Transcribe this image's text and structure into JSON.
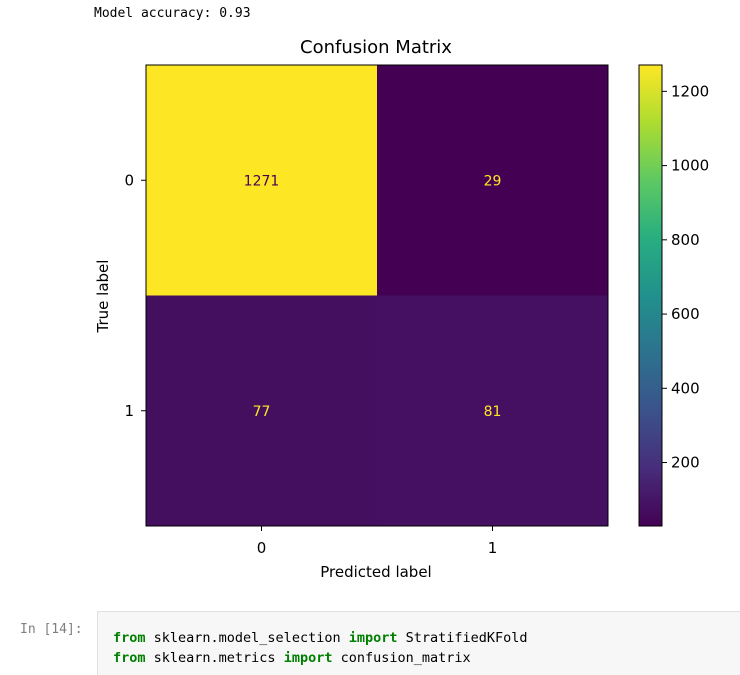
{
  "output": {
    "text": "Model accuracy: 0.93"
  },
  "chart_data": {
    "type": "heatmap",
    "title": "Confusion Matrix",
    "xlabel": "Predicted label",
    "ylabel": "True label",
    "x_categories": [
      "0",
      "1"
    ],
    "y_categories": [
      "0",
      "1"
    ],
    "values": [
      [
        1271,
        29
      ],
      [
        77,
        81
      ]
    ],
    "colormap": "viridis",
    "colorbar": {
      "range": [
        29,
        1271
      ],
      "ticks": [
        200,
        400,
        600,
        800,
        1000,
        1200
      ]
    },
    "grid": false
  },
  "prompt": {
    "label": "In [14]:"
  },
  "code": {
    "line1": {
      "kw1": "from",
      "mod": " sklearn.model_selection ",
      "kw2": "import",
      "name": " StratifiedKFold"
    },
    "line2": {
      "kw1": "from",
      "mod": " sklearn.metrics ",
      "kw2": "import",
      "name": " confusion_matrix"
    }
  }
}
